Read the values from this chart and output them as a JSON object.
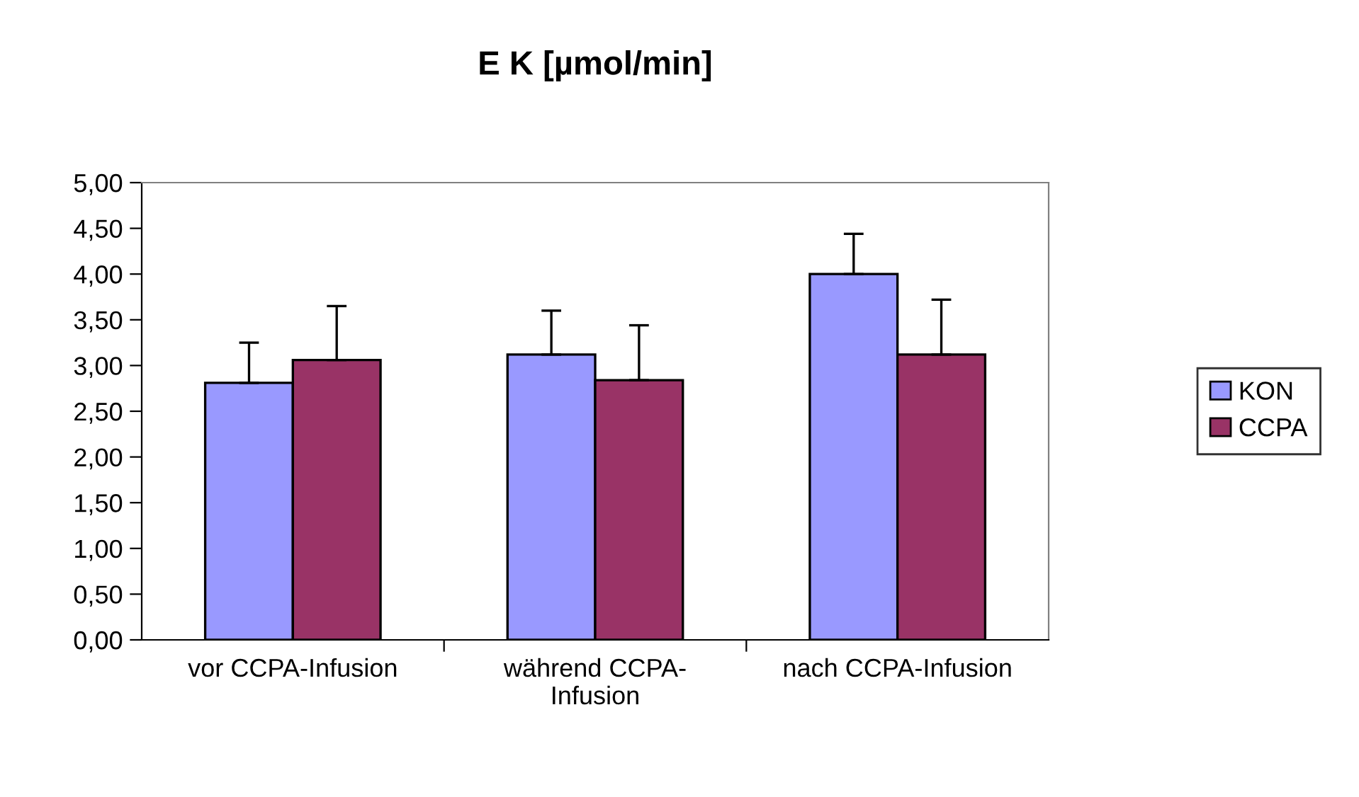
{
  "chart_data": {
    "type": "bar",
    "title": "E K [µmol/min]",
    "categories": [
      "vor CCPA-Infusion",
      "während CCPA-\nInfusion",
      "nach CCPA-Infusion"
    ],
    "series": [
      {
        "name": "KON",
        "color": "#9999ff",
        "values": [
          2.81,
          3.12,
          4.0
        ],
        "errors": [
          [
            2.81,
            3.25
          ],
          [
            3.12,
            3.6
          ],
          [
            4.0,
            4.44
          ]
        ]
      },
      {
        "name": "CCPA",
        "color": "#993366",
        "values": [
          3.06,
          2.84,
          3.12
        ],
        "errors": [
          [
            3.06,
            3.65
          ],
          [
            2.84,
            3.44
          ],
          [
            3.12,
            3.72
          ]
        ]
      }
    ],
    "ylim": [
      0,
      5
    ],
    "yticks": [
      {
        "value": 0,
        "label": "0,00"
      },
      {
        "value": 0.5,
        "label": "0,50"
      },
      {
        "value": 1,
        "label": "1,00"
      },
      {
        "value": 1.5,
        "label": "1,50"
      },
      {
        "value": 2,
        "label": "2,00"
      },
      {
        "value": 2.5,
        "label": "2,50"
      },
      {
        "value": 3,
        "label": "3,00"
      },
      {
        "value": 3.5,
        "label": "3,50"
      },
      {
        "value": 4,
        "label": "4,00"
      },
      {
        "value": 4.5,
        "label": "4,50"
      },
      {
        "value": 5,
        "label": "5,00"
      }
    ],
    "grid": false,
    "legend": "right"
  }
}
